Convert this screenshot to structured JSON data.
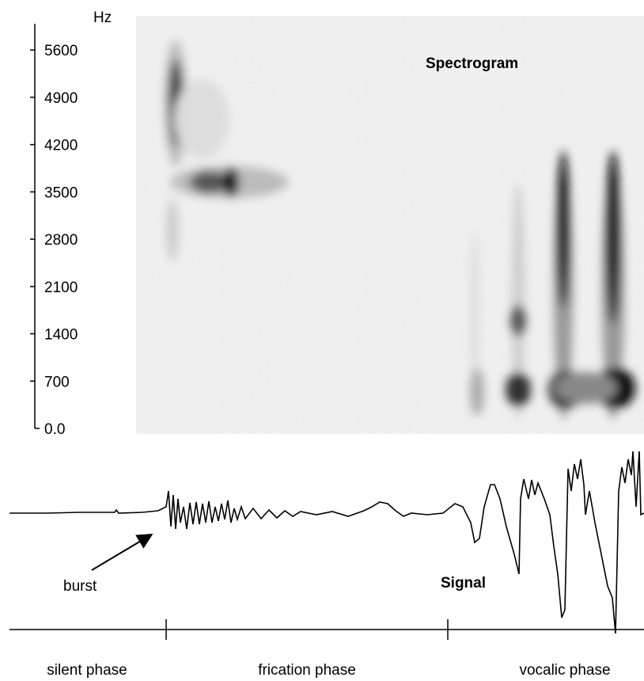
{
  "frequency_axis": {
    "unit": "Hz",
    "ylim": [
      0,
      6000
    ],
    "ticks": [
      {
        "value": 0,
        "label": "0.0"
      },
      700,
      1400,
      2100,
      2800,
      3500,
      4200,
      4900,
      5600
    ]
  },
  "labels": {
    "spectrogram": "Spectrogram",
    "signal": "Signal",
    "burst": "burst"
  },
  "phases": [
    "silent phase",
    "frication phase",
    "vocalic phase"
  ]
}
